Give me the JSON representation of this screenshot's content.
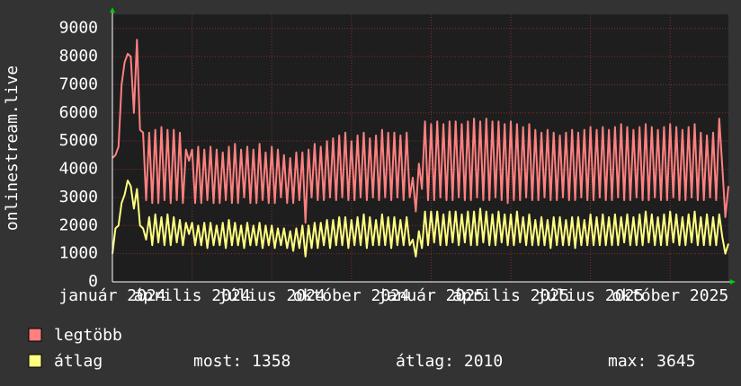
{
  "chart_data": {
    "type": "line",
    "y_label": "onlinestream.live",
    "categories": [
      "január 2024",
      null,
      null,
      null,
      null,
      null,
      null,
      null,
      null,
      null,
      null,
      null,
      null,
      null,
      null,
      null,
      null,
      null,
      null,
      null,
      null,
      null,
      null,
      null,
      null,
      null,
      "április 2024",
      null,
      null,
      null,
      null,
      null,
      null,
      null,
      null,
      null,
      null,
      null,
      null,
      null,
      null,
      null,
      null,
      null,
      null,
      null,
      null,
      null,
      null,
      null,
      null,
      null,
      "július 2024",
      null,
      null,
      null,
      null,
      null,
      null,
      null,
      null,
      null,
      null,
      null,
      null,
      null,
      null,
      null,
      null,
      null,
      null,
      null,
      null,
      null,
      null,
      null,
      null,
      null,
      "október 2024",
      null,
      null,
      null,
      null,
      null,
      null,
      null,
      null,
      null,
      null,
      null,
      null,
      null,
      null,
      null,
      null,
      null,
      null,
      null,
      null,
      null,
      null,
      null,
      null,
      null,
      "január 2025",
      null,
      null,
      null,
      null,
      null,
      null,
      null,
      null,
      null,
      null,
      null,
      null,
      null,
      null,
      null,
      null,
      null,
      null,
      null,
      null,
      null,
      null,
      null,
      null,
      null,
      "április 2025",
      null,
      null,
      null,
      null,
      null,
      null,
      null,
      null,
      null,
      null,
      null,
      null,
      null,
      null,
      null,
      null,
      null,
      null,
      null,
      null,
      null,
      null,
      null,
      null,
      null,
      "július 2025",
      null,
      null,
      null,
      null,
      null,
      null,
      null,
      null,
      null,
      null,
      null,
      null,
      null,
      null,
      null,
      null,
      null,
      null,
      null,
      null,
      null,
      null,
      null,
      null,
      null,
      "október 2025",
      null,
      null,
      null,
      null,
      null,
      null,
      null,
      null,
      null,
      null,
      null,
      null,
      null,
      null,
      null,
      null,
      null,
      null,
      null
    ],
    "series": [
      {
        "name": "legtöbb",
        "color": "#ff8080",
        "values": [
          4400,
          4500,
          4800,
          7000,
          7800,
          8100,
          8000,
          6000,
          8600,
          5400,
          5300,
          2900,
          5300,
          2800,
          5400,
          2800,
          5500,
          2900,
          5400,
          2800,
          5400,
          2900,
          5300,
          2800,
          4700,
          4300,
          4700,
          2800,
          4800,
          2800,
          4700,
          2900,
          4800,
          2800,
          4700,
          2800,
          4600,
          2900,
          4800,
          2800,
          4900,
          2800,
          4700,
          3000,
          4800,
          2800,
          4700,
          2800,
          4900,
          2900,
          4600,
          2800,
          4800,
          2800,
          4700,
          3000,
          4500,
          2800,
          4400,
          2800,
          4600,
          2900,
          4600,
          2100,
          4700,
          3000,
          4900,
          2900,
          4800,
          2900,
          5000,
          3000,
          5100,
          2900,
          5200,
          3000,
          5300,
          2900,
          5000,
          2900,
          5200,
          3000,
          5300,
          2900,
          5100,
          3000,
          5200,
          2900,
          5400,
          3000,
          5300,
          2900,
          5300,
          3000,
          5200,
          2900,
          5300,
          3000,
          3700,
          2500,
          4200,
          3300,
          5700,
          2900,
          5600,
          2900,
          5700,
          3000,
          5600,
          2900,
          5700,
          2900,
          5700,
          3000,
          5600,
          2900,
          5700,
          2900,
          5800,
          3000,
          5700,
          2900,
          5800,
          2900,
          5700,
          3000,
          5700,
          2900,
          5600,
          2800,
          5700,
          2900,
          5600,
          2900,
          5500,
          3000,
          5600,
          2900,
          5400,
          2900,
          5300,
          3000,
          5400,
          2900,
          5300,
          2900,
          5200,
          3000,
          5300,
          2900,
          5400,
          2900,
          5300,
          3000,
          5400,
          2900,
          5500,
          2900,
          5400,
          3000,
          5500,
          2900,
          5400,
          2900,
          5500,
          3000,
          5600,
          2900,
          5500,
          2900,
          5400,
          3000,
          5500,
          2900,
          5600,
          2900,
          5500,
          3000,
          5400,
          2900,
          5500,
          2900,
          5600,
          3000,
          5500,
          2900,
          5400,
          2900,
          5500,
          3000,
          5600,
          2900,
          5300,
          2900,
          5200,
          3000,
          5300,
          2900,
          5800,
          4100,
          2300,
          3400
        ]
      },
      {
        "name": "átlag",
        "color": "#ffff80",
        "values": [
          1000,
          1900,
          2000,
          2800,
          3100,
          3600,
          3400,
          2600,
          3300,
          2000,
          1900,
          1500,
          2300,
          1300,
          2400,
          1400,
          2300,
          1300,
          2400,
          1300,
          2300,
          1400,
          2200,
          1300,
          2100,
          1700,
          2100,
          1300,
          2000,
          1300,
          2100,
          1200,
          2100,
          1300,
          2000,
          1300,
          2100,
          1200,
          2200,
          1300,
          2100,
          1300,
          2000,
          1200,
          2100,
          1300,
          2000,
          1300,
          2100,
          1200,
          2000,
          1300,
          2000,
          1200,
          1900,
          1300,
          1900,
          1200,
          1800,
          1100,
          1900,
          1200,
          2000,
          900,
          2000,
          1200,
          2100,
          1200,
          2100,
          1300,
          2200,
          1200,
          2200,
          1300,
          2300,
          1300,
          2300,
          1200,
          2200,
          1300,
          2300,
          1300,
          2400,
          1200,
          2300,
          1300,
          2200,
          1300,
          2400,
          1300,
          2300,
          1200,
          2300,
          1300,
          2200,
          1300,
          2300,
          1300,
          1500,
          900,
          1800,
          1200,
          2500,
          1300,
          2500,
          1400,
          2500,
          1300,
          2400,
          1300,
          2500,
          1400,
          2500,
          1300,
          2400,
          1400,
          2500,
          1300,
          2500,
          1300,
          2600,
          1400,
          2500,
          1300,
          2400,
          1300,
          2500,
          1400,
          2400,
          1300,
          2400,
          1300,
          2500,
          1400,
          2300,
          1300,
          2400,
          1300,
          2200,
          1300,
          2300,
          1300,
          2200,
          1200,
          2300,
          1300,
          2300,
          1300,
          2200,
          1300,
          2300,
          1200,
          2300,
          1300,
          2200,
          1300,
          2400,
          1300,
          2300,
          1300,
          2400,
          1300,
          2300,
          1300,
          2400,
          1300,
          2300,
          1400,
          2400,
          1300,
          2300,
          1300,
          2400,
          1300,
          2500,
          1400,
          2400,
          1300,
          2300,
          1300,
          2400,
          1300,
          2500,
          1400,
          2400,
          1300,
          2300,
          1300,
          2400,
          1400,
          2500,
          1300,
          2300,
          1300,
          2400,
          1300,
          2300,
          1300,
          2400,
          1600,
          1000,
          1358
        ]
      }
    ],
    "stats": [
      "most: 1358",
      "átlag: 2010",
      "max: 3645"
    ],
    "ylim": [
      0,
      9500
    ],
    "yticks": [
      0,
      1000,
      2000,
      3000,
      4000,
      5000,
      6000,
      7000,
      8000,
      9000
    ],
    "grid": true
  }
}
